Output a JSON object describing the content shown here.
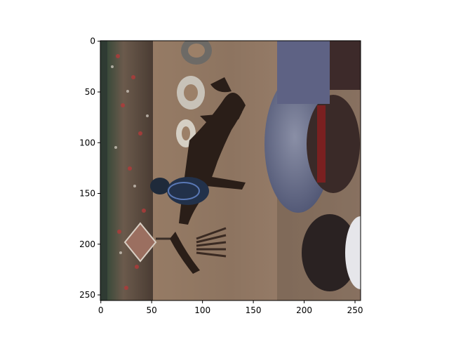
{
  "chart_data": {
    "type": "image",
    "xlim": [
      -0.5,
      255.5
    ],
    "ylim": [
      255.5,
      -0.5
    ],
    "x_ticks": [
      0,
      50,
      100,
      150,
      200,
      250
    ],
    "y_ticks": [
      0,
      50,
      100,
      150,
      200,
      250
    ],
    "image_content": "rodeo-rider-on-horse-rotated",
    "grid": false,
    "title": "",
    "xlabel": "",
    "ylabel": ""
  },
  "colors": {
    "axis": "#000000",
    "background": "#ffffff"
  }
}
